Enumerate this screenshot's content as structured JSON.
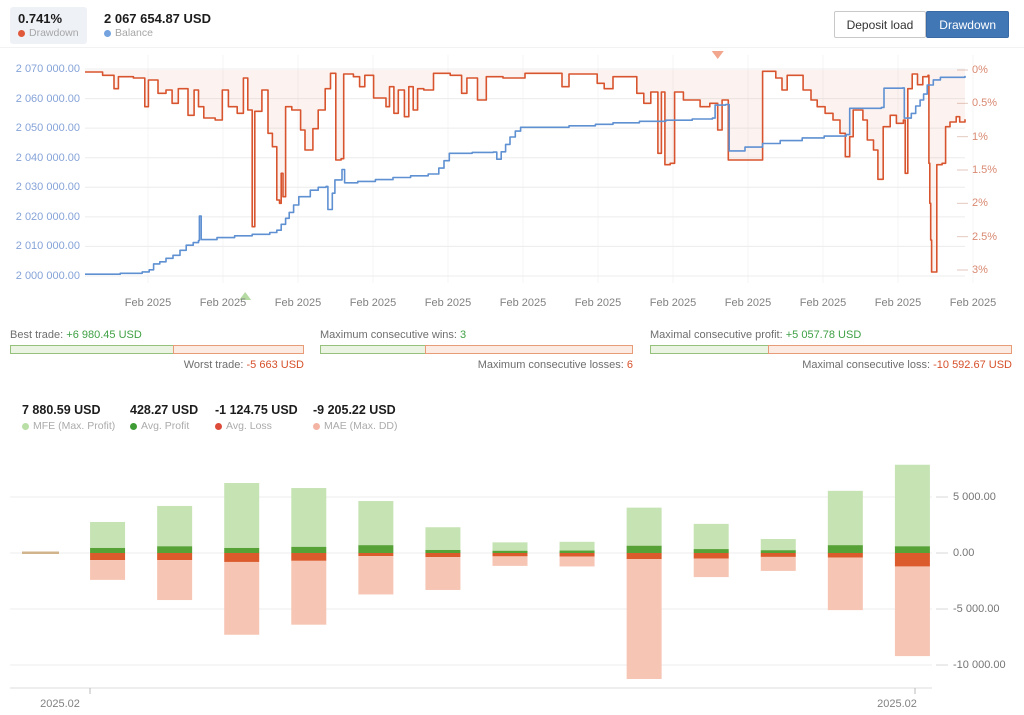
{
  "header": {
    "drawdown": {
      "value": "0.741%",
      "label": "Drawdown",
      "dot_color": "#e0593a"
    },
    "balance": {
      "value": "2 067 654.87 USD",
      "label": "Balance",
      "dot_color": "#74a3e0"
    },
    "buttons": {
      "deposit_load": "Deposit load",
      "drawdown": "Drawdown"
    }
  },
  "gauges": [
    {
      "top_label": "Best trade:",
      "top_value": "+6 980.45 USD",
      "bottom_label": "Worst trade:",
      "bottom_value": "-5 663 USD",
      "positive": 6980.45,
      "negative": 5663
    },
    {
      "top_label": "Maximum consecutive wins:",
      "top_value": "3",
      "bottom_label": "Maximum consecutive losses:",
      "bottom_value": "6",
      "positive": 3,
      "negative": 6
    },
    {
      "top_label": "Maximal consecutive profit:",
      "top_value": "+5 057.78 USD",
      "bottom_label": "Maximal consecutive loss:",
      "bottom_value": "-10 592.67 USD",
      "positive": 5057.78,
      "negative": 10592.67
    }
  ],
  "stats": [
    {
      "value": "7 880.59 USD",
      "label": "MFE (Max. Profit)",
      "dot": "#b9dfa6"
    },
    {
      "value": "428.27 USD",
      "label": "Avg. Profit",
      "dot": "#3f9c35"
    },
    {
      "value": "-1 124.75 USD",
      "label": "Avg. Loss",
      "dot": "#dd4b3a"
    },
    {
      "value": "-9 205.22 USD",
      "label": "MAE (Max. DD)",
      "dot": "#f4b4a4"
    }
  ],
  "chart_data": [
    {
      "type": "line",
      "title": "Balance / Drawdown",
      "x_axis": {
        "labels": [
          "Feb 2025",
          "Feb 2025",
          "Feb 2025",
          "Feb 2025",
          "Feb 2025",
          "Feb 2025",
          "Feb 2025",
          "Feb 2025",
          "Feb 2025",
          "Feb 2025",
          "Feb 2025",
          "Feb 2025"
        ]
      },
      "y_left": {
        "labels": [
          "2 070 000.00",
          "2 060 000.00",
          "2 050 000.00",
          "2 040 000.00",
          "2 030 000.00",
          "2 020 000.00",
          "2 010 000.00",
          "2 000 000.00"
        ],
        "min": 2000000,
        "max": 2070000,
        "color": "#85a3d8"
      },
      "y_right": {
        "labels": [
          "0%",
          "0.5%",
          "1%",
          "1.5%",
          "2%",
          "2.5%",
          "3%"
        ],
        "min": 0,
        "max": 3,
        "color": "#d98972"
      },
      "grid": true,
      "legend_position": "top-left-header",
      "series": [
        {
          "name": "Balance",
          "axis": "left",
          "color": "#5e90d2",
          "points": [
            [
              0,
              2000600
            ],
            [
              4,
              2000900
            ],
            [
              6.5,
              2001400
            ],
            [
              7.3,
              2002100
            ],
            [
              7.8,
              2004100
            ],
            [
              8.5,
              2004800
            ],
            [
              9.2,
              2006000
            ],
            [
              10,
              2007000
            ],
            [
              10.8,
              2008700
            ],
            [
              11.5,
              2010400
            ],
            [
              12.3,
              2011300
            ],
            [
              12.9,
              2012000
            ],
            [
              13.0,
              2020300
            ],
            [
              13.2,
              2012300
            ],
            [
              15,
              2013000
            ],
            [
              17,
              2013600
            ],
            [
              19,
              2014100
            ],
            [
              21,
              2014700
            ],
            [
              21.8,
              2015500
            ],
            [
              22.3,
              2017500
            ],
            [
              22.8,
              2019500
            ],
            [
              23.2,
              2021500
            ],
            [
              23.7,
              2024000
            ],
            [
              24.3,
              2026800
            ],
            [
              25.6,
              2029000
            ],
            [
              26.5,
              2030000
            ],
            [
              27.4,
              2030300
            ],
            [
              27.6,
              2022500
            ],
            [
              28.1,
              2028000
            ],
            [
              28.4,
              2032500
            ],
            [
              29.2,
              2036000
            ],
            [
              29.5,
              2031500
            ],
            [
              31,
              2032000
            ],
            [
              33,
              2032600
            ],
            [
              35,
              2033300
            ],
            [
              37,
              2033900
            ],
            [
              39,
              2034500
            ],
            [
              40.2,
              2036500
            ],
            [
              40.8,
              2039000
            ],
            [
              41.4,
              2041500
            ],
            [
              44,
              2041800
            ],
            [
              46.4,
              2041900
            ],
            [
              46.8,
              2039500
            ],
            [
              47.3,
              2042000
            ],
            [
              47.8,
              2044500
            ],
            [
              48.3,
              2047000
            ],
            [
              48.9,
              2049000
            ],
            [
              49.5,
              2050300
            ],
            [
              55,
              2050800
            ],
            [
              58,
              2051300
            ],
            [
              60,
              2051800
            ],
            [
              63,
              2052300
            ],
            [
              66,
              2052700
            ],
            [
              69,
              2053100
            ],
            [
              71.3,
              2053400
            ],
            [
              71.6,
              2057800
            ],
            [
              72.8,
              2058000
            ],
            [
              73.2,
              2042300
            ],
            [
              75,
              2043600
            ],
            [
              77,
              2044800
            ],
            [
              79,
              2045800
            ],
            [
              81.5,
              2046700
            ],
            [
              84,
              2047300
            ],
            [
              86.5,
              2047800
            ],
            [
              86.9,
              2056700
            ],
            [
              90.5,
              2057000
            ],
            [
              90.8,
              2063500
            ],
            [
              92.9,
              2063600
            ],
            [
              93.1,
              2053400
            ],
            [
              93.9,
              2055000
            ],
            [
              94.4,
              2057500
            ],
            [
              94.9,
              2059500
            ],
            [
              95.3,
              2061500
            ],
            [
              95.7,
              2064600
            ],
            [
              96.4,
              2066300
            ],
            [
              97.2,
              2067200
            ],
            [
              100,
              2067650
            ]
          ]
        },
        {
          "name": "Drawdown",
          "axis": "right",
          "color": "#d8542e",
          "fill": "rgba(216,84,46,0.07)",
          "points": [
            [
              0,
              0.03
            ],
            [
              2,
              0.08
            ],
            [
              3.3,
              0.28
            ],
            [
              3.8,
              0.1
            ],
            [
              5.5,
              0.12
            ],
            [
              6.8,
              0.55
            ],
            [
              7.2,
              0.15
            ],
            [
              8.3,
              0.35
            ],
            [
              9.2,
              0.3
            ],
            [
              9.9,
              0.5
            ],
            [
              10.6,
              0.28
            ],
            [
              11.7,
              0.68
            ],
            [
              12.4,
              0.3
            ],
            [
              12.9,
              0.55
            ],
            [
              13.5,
              0.72
            ],
            [
              14.8,
              0.75
            ],
            [
              15.6,
              0.3
            ],
            [
              16.3,
              0.55
            ],
            [
              17.3,
              0.65
            ],
            [
              18.0,
              0.12
            ],
            [
              18.5,
              0.6
            ],
            [
              19.0,
              2.35
            ],
            [
              19.3,
              0.62
            ],
            [
              20.1,
              0.3
            ],
            [
              20.8,
              0.95
            ],
            [
              21.3,
              1.15
            ],
            [
              21.8,
              1.95
            ],
            [
              22.1,
              2.0
            ],
            [
              22.3,
              1.55
            ],
            [
              22.5,
              1.9
            ],
            [
              22.8,
              0.55
            ],
            [
              23.5,
              0.6
            ],
            [
              24.5,
              0.9
            ],
            [
              25.0,
              1.2
            ],
            [
              25.9,
              0.88
            ],
            [
              26.5,
              0.6
            ],
            [
              27.3,
              0.28
            ],
            [
              27.9,
              0.05
            ],
            [
              28.5,
              1.35
            ],
            [
              29.1,
              1.33
            ],
            [
              29.4,
              0.06
            ],
            [
              30.5,
              0.1
            ],
            [
              31.2,
              0.25
            ],
            [
              31.8,
              0.08
            ],
            [
              32.8,
              0.42
            ],
            [
              34.2,
              0.55
            ],
            [
              34.6,
              0.25
            ],
            [
              35.1,
              0.65
            ],
            [
              35.6,
              0.3
            ],
            [
              36.3,
              0.7
            ],
            [
              36.8,
              0.25
            ],
            [
              37.3,
              0.6
            ],
            [
              37.8,
              0.28
            ],
            [
              38.5,
              0.3
            ],
            [
              39.6,
              0.05
            ],
            [
              41.5,
              0.08
            ],
            [
              42.8,
              0.35
            ],
            [
              43.4,
              0.12
            ],
            [
              44.6,
              0.45
            ],
            [
              45.6,
              0.1
            ],
            [
              47.5,
              0.12
            ],
            [
              50,
              0.05
            ],
            [
              54.2,
              0.25
            ],
            [
              55,
              0.06
            ],
            [
              58.2,
              0.2
            ],
            [
              59,
              0.28
            ],
            [
              60,
              0.1
            ],
            [
              62.7,
              0.35
            ],
            [
              63.5,
              0.5
            ],
            [
              64.3,
              0.33
            ],
            [
              65.1,
              1.25
            ],
            [
              65.5,
              0.33
            ],
            [
              65.9,
              1.42
            ],
            [
              66.5,
              1.4
            ],
            [
              67,
              0.33
            ],
            [
              68,
              0.45
            ],
            [
              69.9,
              0.55
            ],
            [
              71,
              0.5
            ],
            [
              71.9,
              0.9
            ],
            [
              72.4,
              0.45
            ],
            [
              73.1,
              1.35
            ],
            [
              76.9,
              1.35
            ],
            [
              77,
              0.02
            ],
            [
              78.5,
              0.12
            ],
            [
              79.2,
              0.3
            ],
            [
              79.8,
              0.08
            ],
            [
              81.6,
              0.3
            ],
            [
              82.5,
              0.45
            ],
            [
              83.2,
              0.55
            ],
            [
              84.1,
              0.65
            ],
            [
              85,
              0.75
            ],
            [
              85.8,
              0.95
            ],
            [
              86.4,
              1.3
            ],
            [
              86.9,
              1.0
            ],
            [
              87.3,
              0.6
            ],
            [
              88.4,
              0.75
            ],
            [
              88.9,
              1.05
            ],
            [
              89.6,
              1.2
            ],
            [
              90.1,
              1.64
            ],
            [
              90.7,
              0.85
            ],
            [
              91.5,
              0.68
            ],
            [
              92.2,
              0.8
            ],
            [
              93,
              0.75
            ],
            [
              93.2,
              1.55
            ],
            [
              93.5,
              0.28
            ],
            [
              94,
              0.06
            ],
            [
              94.6,
              0.22
            ],
            [
              95.2,
              0.1
            ],
            [
              95.8,
              0.08
            ],
            [
              95.9,
              1.4
            ],
            [
              96.0,
              2.0
            ],
            [
              96.1,
              2.55
            ],
            [
              96.2,
              3.03
            ],
            [
              96.6,
              3.03
            ],
            [
              96.8,
              1.42
            ],
            [
              97.4,
              1.4
            ],
            [
              97.8,
              0.85
            ],
            [
              98.3,
              0.78
            ],
            [
              99,
              0.7
            ],
            [
              99.4,
              0.78
            ],
            [
              100,
              0.74
            ]
          ]
        }
      ],
      "markers": [
        {
          "shape": "triangle-down",
          "color": "#f2a68e",
          "x_pct": 71.9,
          "pos": "top"
        },
        {
          "shape": "triangle-up",
          "color": "#b5dba3",
          "x_pct": 18.2,
          "pos": "bottom"
        }
      ]
    },
    {
      "type": "bar",
      "stacked": true,
      "title": "MFE / MAE distribution",
      "x_labels": [
        "2025.02",
        "2025.02"
      ],
      "y_right": {
        "labels": [
          "5 000.00",
          "0.00",
          "-5 000.00",
          "-10 000.00"
        ],
        "values": [
          5000,
          0,
          -5000,
          -10000
        ],
        "color": "#757575"
      },
      "ylim": [
        -12000,
        8700
      ],
      "categories": [
        "1",
        "2",
        "3",
        "4",
        "5",
        "6",
        "7",
        "8",
        "9",
        "10",
        "11",
        "12",
        "13",
        "14"
      ],
      "series": [
        {
          "name": "MFE (Max. Profit)",
          "color": "#c6e3b4",
          "values": [
            80,
            2770,
            4200,
            6250,
            5800,
            4640,
            2300,
            950,
            1000,
            4050,
            2600,
            1250,
            5550,
            7880
          ]
        },
        {
          "name": "Avg. Profit",
          "color": "#56a237",
          "values": [
            40,
            450,
            600,
            450,
            550,
            700,
            270,
            200,
            220,
            650,
            350,
            250,
            700,
            600
          ]
        },
        {
          "name": "Avg. Loss",
          "color": "#dc5b2d",
          "values": [
            -40,
            -630,
            -630,
            -800,
            -700,
            -270,
            -360,
            -300,
            -320,
            -550,
            -500,
            -350,
            -400,
            -1200
          ]
        },
        {
          "name": "MAE (Max. DD)",
          "color": "#f6c5b4",
          "values": [
            -80,
            -2400,
            -4200,
            -7300,
            -6400,
            -3700,
            -3300,
            -1150,
            -1200,
            -11250,
            -2150,
            -1600,
            -5100,
            -9205
          ]
        }
      ],
      "tiny_bar_color": "#d2b48c"
    }
  ]
}
